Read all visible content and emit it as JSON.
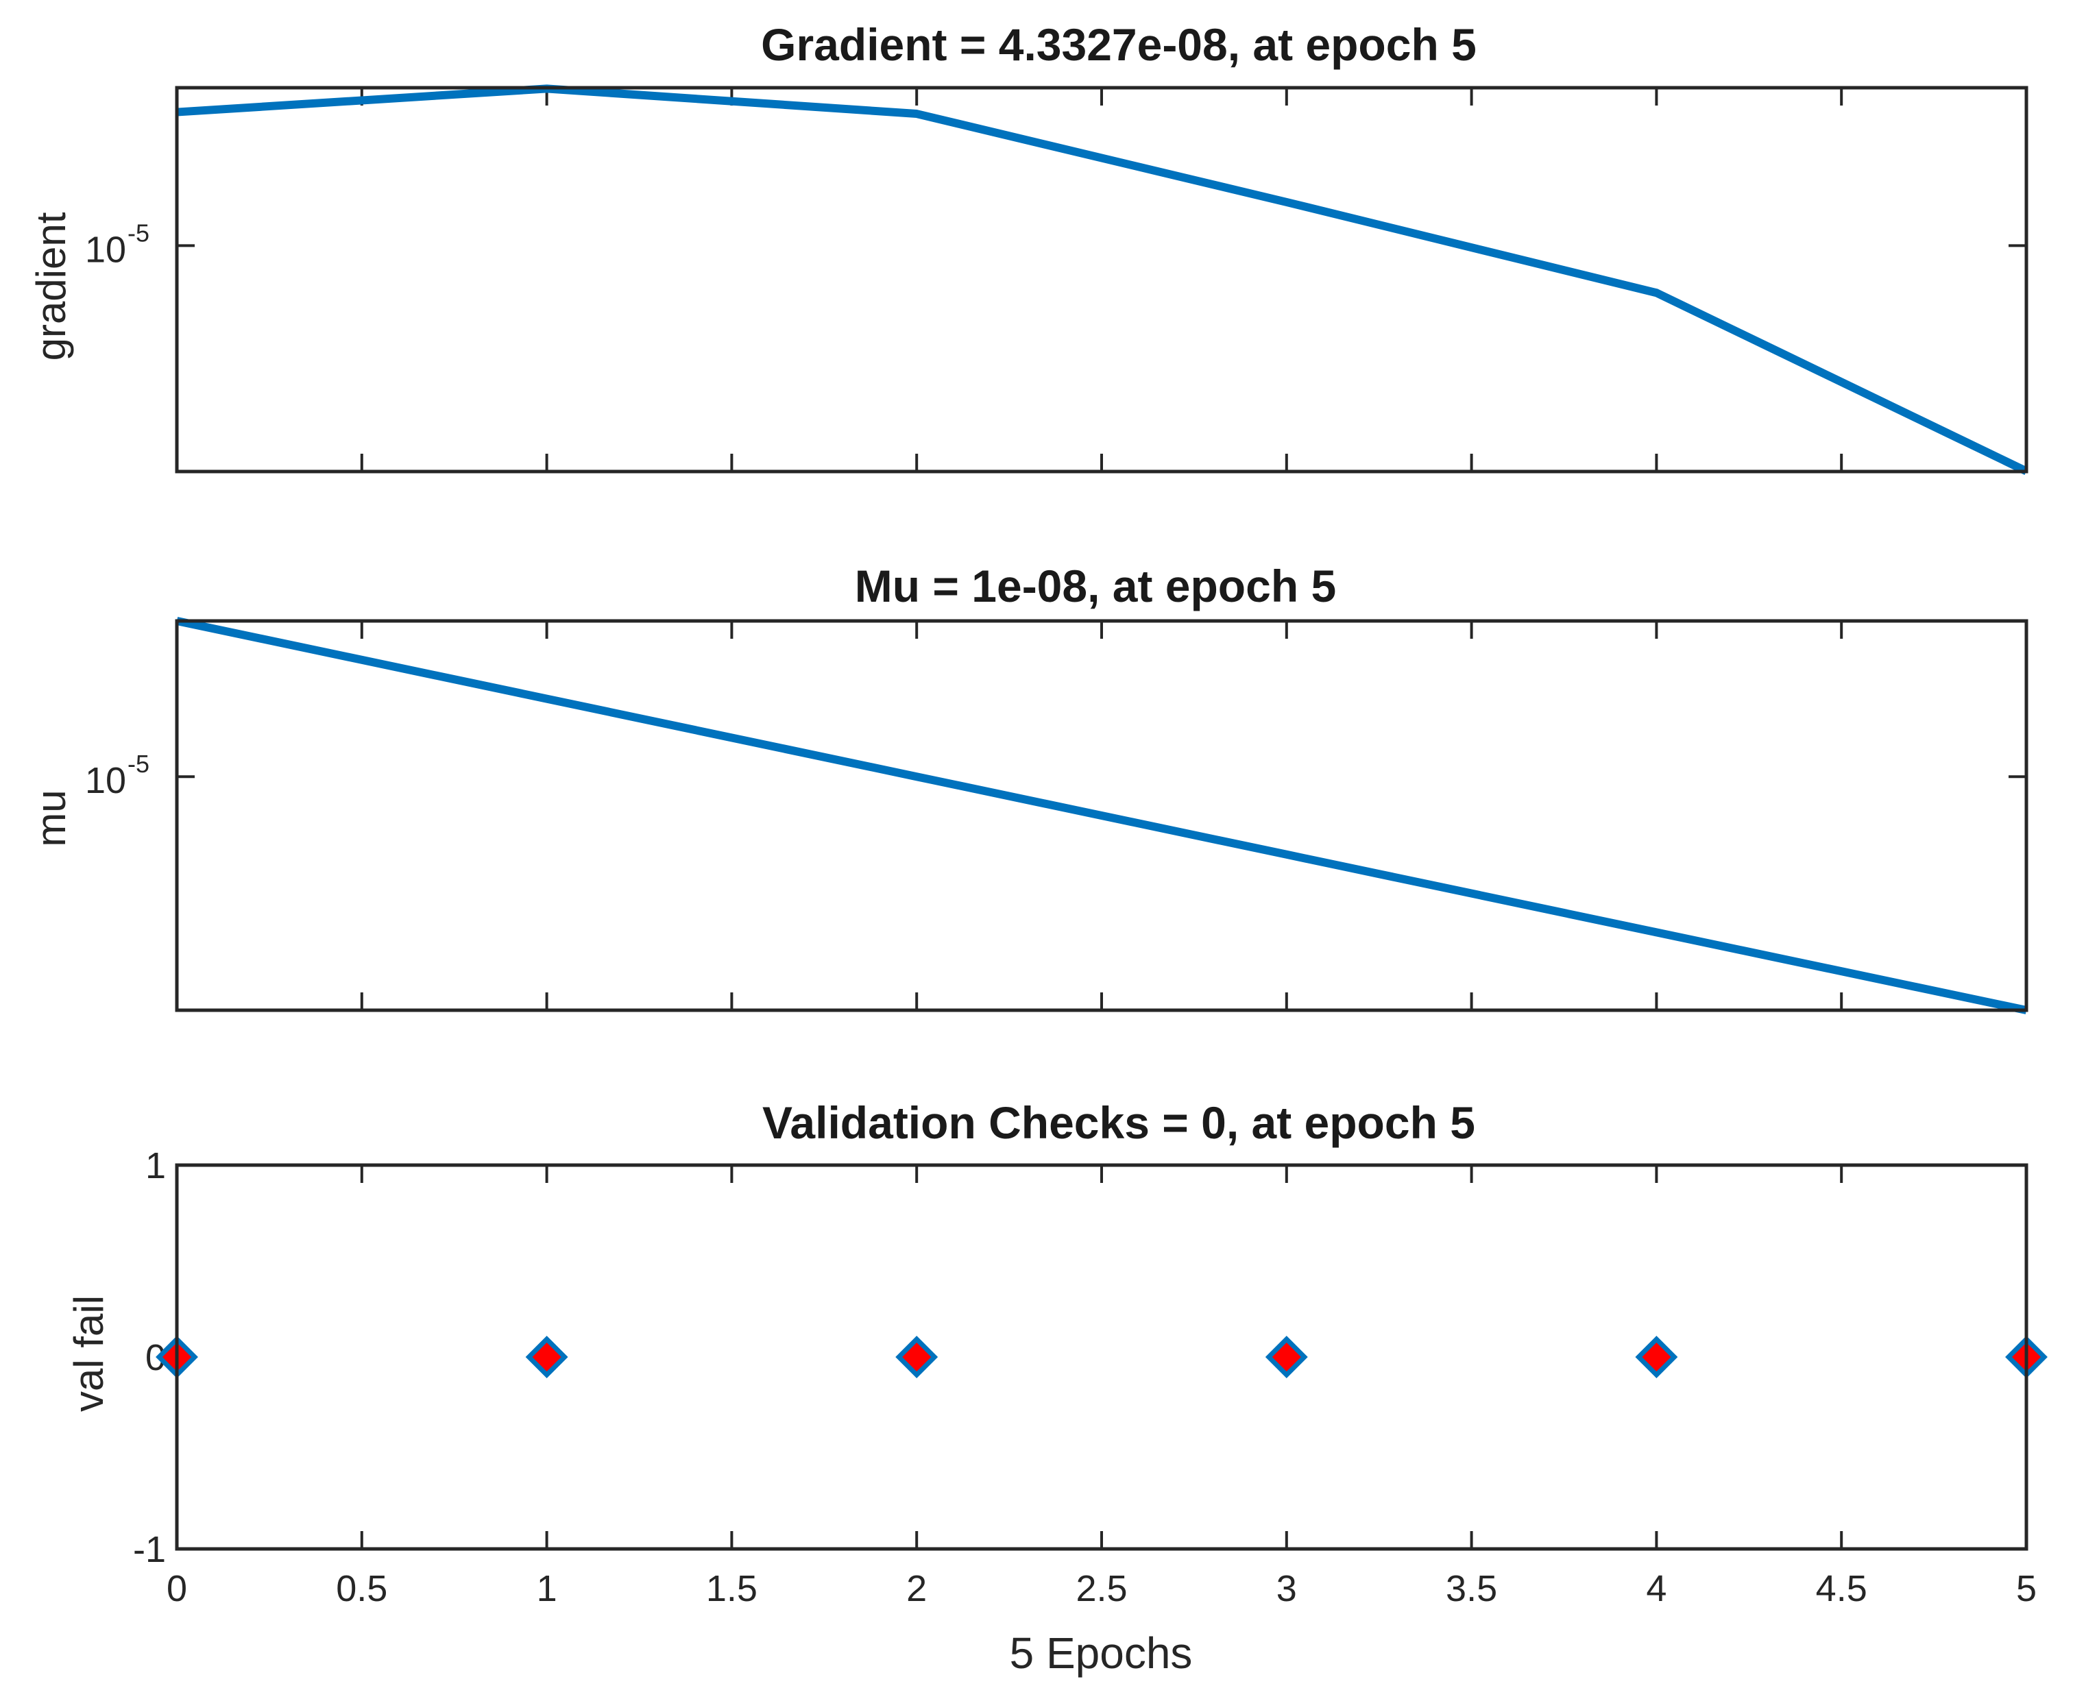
{
  "chart_data": [
    {
      "type": "line",
      "title": "Gradient = 4.3327e-08, at epoch 5",
      "ylabel": "gradient",
      "yscale": "log",
      "ylim": [
        4.3e-08,
        0.00045
      ],
      "yticks": [
        {
          "value": 1e-05,
          "base": "10",
          "exp": "-5"
        }
      ],
      "x": [
        0,
        1,
        2,
        3,
        4,
        5
      ],
      "y": [
        0.00025,
        0.00044,
        0.00024,
        2.85e-05,
        3.2e-06,
        4.3327e-08
      ],
      "color": "#0072BD"
    },
    {
      "type": "line",
      "title": "Mu = 1e-08, at epoch 5",
      "ylabel": "mu",
      "yscale": "log",
      "ylim": [
        1e-08,
        0.001
      ],
      "yticks": [
        {
          "value": 1e-05,
          "base": "10",
          "exp": "-5"
        }
      ],
      "x": [
        0,
        1,
        2,
        3,
        4,
        5
      ],
      "y": [
        0.001,
        0.0001,
        1e-05,
        1e-06,
        1e-07,
        1e-08
      ],
      "color": "#0072BD"
    },
    {
      "type": "scatter",
      "title": "Validation Checks = 0, at epoch 5",
      "ylabel": "val fail",
      "xlabel": "5 Epochs",
      "ylim": [
        -1,
        1
      ],
      "yticks": [
        {
          "value": 1,
          "label": "1"
        },
        {
          "value": 0,
          "label": "0"
        },
        {
          "value": -1,
          "label": "-1"
        }
      ],
      "xlim": [
        0,
        5
      ],
      "xticks": [
        "0",
        "0.5",
        "1",
        "1.5",
        "2",
        "2.5",
        "3",
        "3.5",
        "4",
        "4.5",
        "5"
      ],
      "x": [
        0,
        1,
        2,
        3,
        4,
        5
      ],
      "y": [
        0,
        0,
        0,
        0,
        0,
        0
      ],
      "marker": "diamond",
      "marker_fill": "#FF0000",
      "marker_edge": "#0072BD"
    }
  ]
}
